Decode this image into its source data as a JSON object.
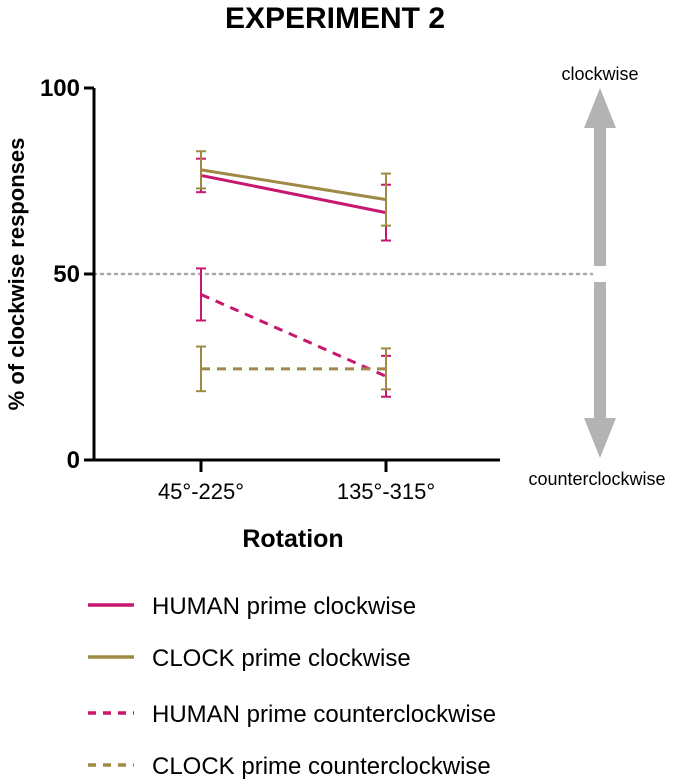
{
  "chart_data": {
    "type": "line",
    "title": "EXPERIMENT 2",
    "xlabel": "Rotation",
    "ylabel": "% of clockwise responses",
    "categories": [
      "45°-225°",
      "135°-315°"
    ],
    "ylim": [
      0,
      100
    ],
    "yticks": [
      "0",
      "50",
      "100"
    ],
    "reference_line": 50,
    "grid": false,
    "legend_position": "bottom",
    "series": [
      {
        "name": "HUMAN prime clockwise",
        "values": [
          76.5,
          66.5
        ],
        "err": [
          4.5,
          7.5
        ],
        "color": "#C8176E",
        "dash": "solid"
      },
      {
        "name": "CLOCK prime clockwise",
        "values": [
          78,
          70
        ],
        "err": [
          5,
          7
        ],
        "color": "#9E8A45",
        "dash": "solid"
      },
      {
        "name": "HUMAN prime counterclockwise",
        "values": [
          44.5,
          22.5
        ],
        "err": [
          7,
          5.5
        ],
        "color": "#C8176E",
        "dash": "dashed"
      },
      {
        "name": "CLOCK prime counterclockwise",
        "values": [
          24.5,
          24.5
        ],
        "err": [
          6,
          5.5
        ],
        "color": "#9E8A45",
        "dash": "dashed"
      }
    ],
    "arrow_labels": {
      "up": "clockwise",
      "down": "counterclockwise"
    }
  }
}
